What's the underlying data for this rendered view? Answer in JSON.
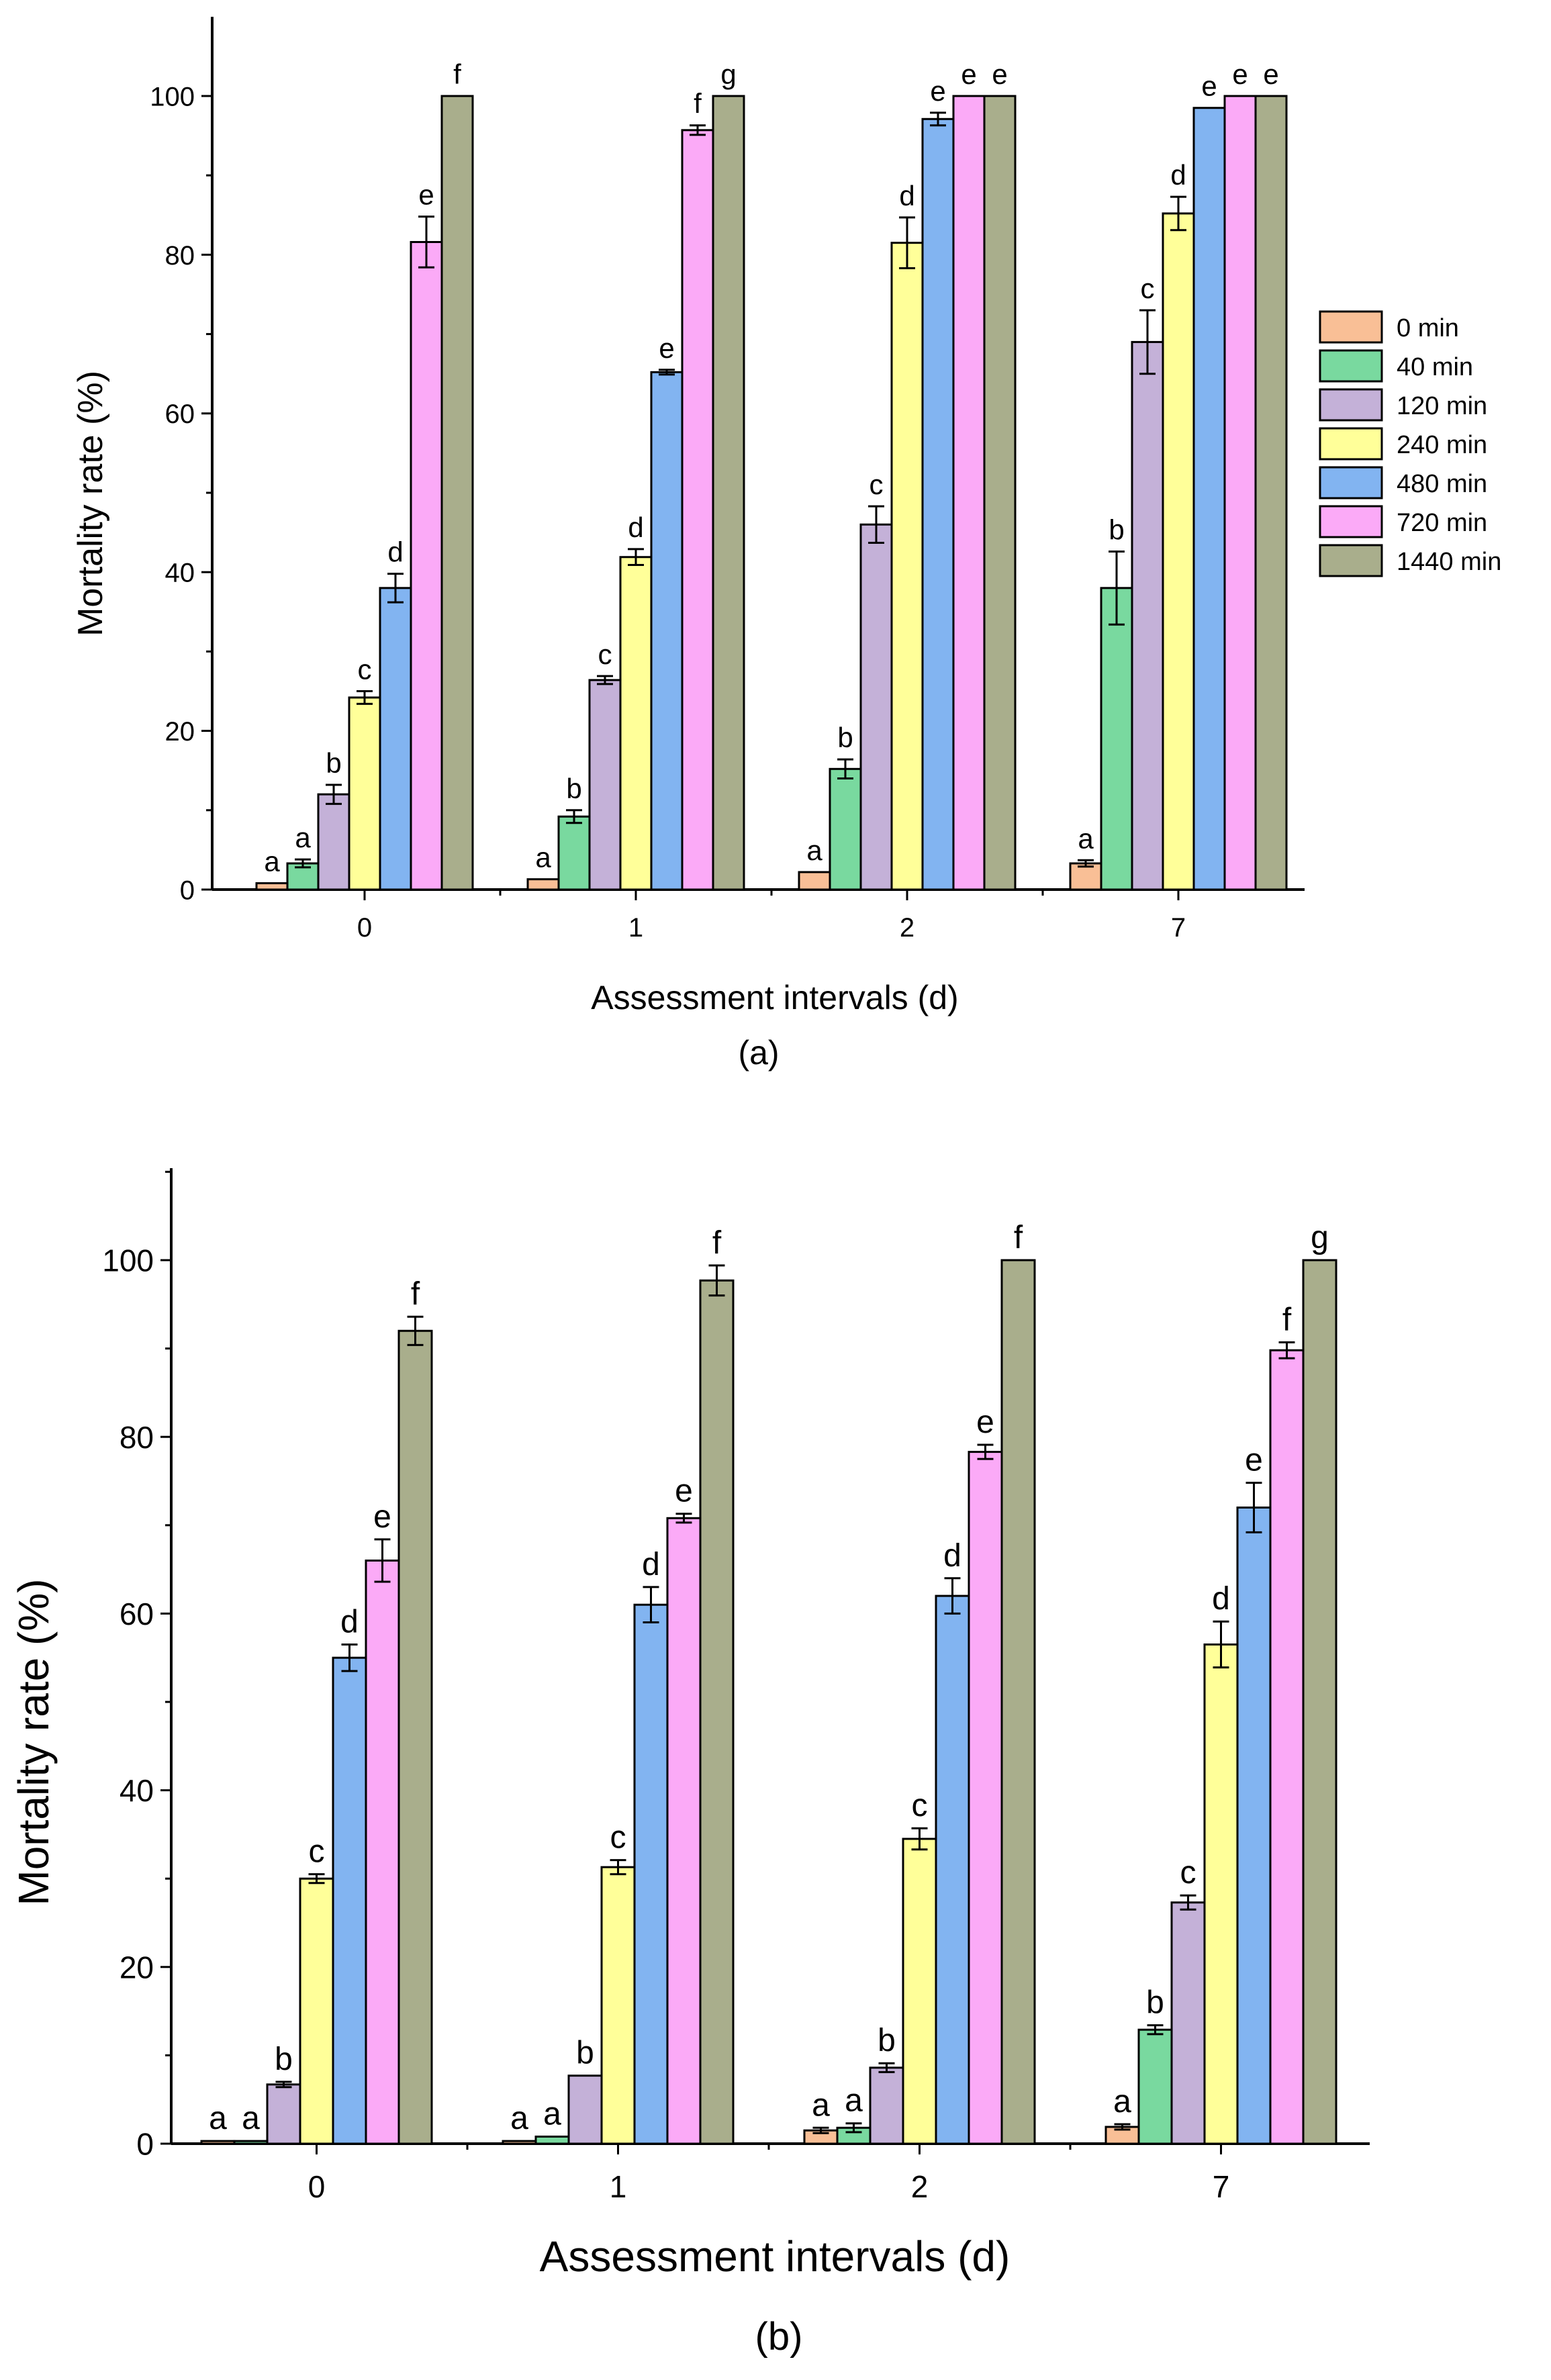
{
  "legend": {
    "entries": [
      "0 min",
      "40 min",
      "120 min",
      "240 min",
      "480 min",
      "720 min",
      "1440 min"
    ]
  },
  "colors": [
    "#f9bf96",
    "#79d99f",
    "#c4b1d8",
    "#ffff99",
    "#82b4f1",
    "#fbaaf7",
    "#a9ae8c"
  ],
  "chart_data": [
    {
      "type": "bar",
      "panel_label": "(a)",
      "xlabel": "Assessment intervals (d)",
      "ylabel": "Mortality rate (%)",
      "ylim": [
        0,
        110
      ],
      "yticks": [
        0,
        20,
        40,
        60,
        80,
        100
      ],
      "categories": [
        "0",
        "1",
        "2",
        "7"
      ],
      "series": [
        {
          "name": "0 min",
          "values": [
            0.8,
            1.3,
            2.2,
            3.3
          ],
          "errors": [
            0.0,
            0.0,
            0.0,
            0.4
          ],
          "letters": [
            "a",
            "a",
            "a",
            "a"
          ]
        },
        {
          "name": "40 min",
          "values": [
            3.3,
            9.2,
            15.2,
            38.0
          ],
          "errors": [
            0.5,
            0.8,
            1.2,
            4.6
          ],
          "letters": [
            "a",
            "b",
            "b",
            "b"
          ]
        },
        {
          "name": "120 min",
          "values": [
            12.0,
            26.4,
            46.0,
            69.0
          ],
          "errors": [
            1.2,
            0.5,
            2.3,
            4.0
          ],
          "letters": [
            "b",
            "c",
            "c",
            "c"
          ]
        },
        {
          "name": "240 min",
          "values": [
            24.2,
            41.9,
            81.5,
            85.2
          ],
          "errors": [
            0.8,
            1.0,
            3.2,
            2.1
          ],
          "letters": [
            "c",
            "d",
            "d",
            "d"
          ]
        },
        {
          "name": "480 min",
          "values": [
            38.0,
            65.2,
            97.1,
            98.5
          ],
          "errors": [
            1.8,
            0.3,
            0.8,
            0.0
          ],
          "letters": [
            "d",
            "e",
            "e",
            "e"
          ]
        },
        {
          "name": "720 min",
          "values": [
            81.6,
            95.7,
            100,
            100
          ],
          "errors": [
            3.2,
            0.6,
            0.0,
            0.0
          ],
          "letters": [
            "e",
            "f",
            "e",
            "e"
          ]
        },
        {
          "name": "1440 min",
          "values": [
            100,
            100,
            100,
            100
          ],
          "errors": [
            0.0,
            0.0,
            0.0,
            0.0
          ],
          "letters": [
            "f",
            "g",
            "e",
            "e"
          ]
        }
      ]
    },
    {
      "type": "bar",
      "panel_label": "(b)",
      "xlabel": "Assessment intervals (d)",
      "ylabel": "Mortality rate (%)",
      "ylim": [
        0,
        110
      ],
      "yticks": [
        0,
        20,
        40,
        60,
        80,
        100
      ],
      "categories": [
        "0",
        "1",
        "2",
        "7"
      ],
      "series": [
        {
          "name": "0 min",
          "values": [
            0.3,
            0.3,
            1.5,
            1.9
          ],
          "errors": [
            0.0,
            0.0,
            0.3,
            0.3
          ],
          "letters": [
            "a",
            "a",
            "a",
            "a"
          ]
        },
        {
          "name": "40 min",
          "values": [
            0.3,
            0.8,
            1.8,
            12.9
          ],
          "errors": [
            0.0,
            0.0,
            0.5,
            0.5
          ],
          "letters": [
            "a",
            "a",
            "a",
            "b"
          ]
        },
        {
          "name": "120 min",
          "values": [
            6.7,
            7.7,
            8.6,
            27.3
          ],
          "errors": [
            0.3,
            0.0,
            0.5,
            0.8
          ],
          "letters": [
            "b",
            "b",
            "b",
            "c"
          ]
        },
        {
          "name": "240 min",
          "values": [
            30.0,
            31.3,
            34.5,
            56.5
          ],
          "errors": [
            0.5,
            0.8,
            1.2,
            2.6
          ],
          "letters": [
            "c",
            "c",
            "c",
            "d"
          ]
        },
        {
          "name": "480 min",
          "values": [
            55.0,
            61.0,
            62.0,
            72.0
          ],
          "errors": [
            1.5,
            2.0,
            2.0,
            2.8
          ],
          "letters": [
            "d",
            "d",
            "d",
            "e"
          ]
        },
        {
          "name": "720 min",
          "values": [
            66.0,
            70.8,
            78.3,
            89.8
          ],
          "errors": [
            2.4,
            0.5,
            0.8,
            0.9
          ],
          "letters": [
            "e",
            "e",
            "e",
            "f"
          ]
        },
        {
          "name": "1440 min",
          "values": [
            92.0,
            97.7,
            100,
            100
          ],
          "errors": [
            1.6,
            1.7,
            0.0,
            0.0
          ],
          "letters": [
            "f",
            "f",
            "f",
            "g"
          ]
        }
      ]
    }
  ]
}
